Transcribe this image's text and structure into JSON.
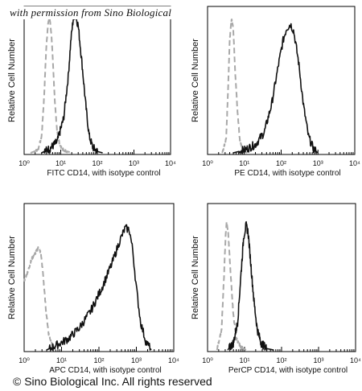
{
  "watermark": "with permission from Sino Biological",
  "copyright": "© Sino Biological Inc. All rights reserved",
  "colors": {
    "sample": "#111111",
    "isotype_control": "#a8a8a8",
    "axis": "#000000"
  },
  "chart_data": [
    {
      "type": "line",
      "xlabel": "FITC CD14,  with isotype control",
      "ylabel": "Relative Cell Number",
      "xscale": "log",
      "xlim": [
        1,
        10000
      ],
      "x_tick_labels": [
        "10⁰",
        "10¹",
        "10²",
        "10³",
        "10⁴"
      ],
      "y_tick_labels": [],
      "series": [
        {
          "role": "isotype",
          "style": "dashed-gray",
          "points": [
            [
              1.5,
              0.0
            ],
            [
              2.4,
              0.02
            ],
            [
              3.0,
              0.12
            ],
            [
              3.5,
              0.4
            ],
            [
              4.0,
              0.75
            ],
            [
              4.5,
              0.94
            ],
            [
              5.0,
              0.97
            ],
            [
              5.6,
              0.85
            ],
            [
              6.2,
              0.62
            ],
            [
              7.0,
              0.35
            ],
            [
              8.0,
              0.15
            ],
            [
              9.5,
              0.05
            ],
            [
              12,
              0.02
            ],
            [
              20,
              0.0
            ]
          ]
        },
        {
          "role": "sample",
          "style": "solid-black",
          "points": [
            [
              3.0,
              0.0
            ],
            [
              5.0,
              0.03
            ],
            [
              8.0,
              0.08
            ],
            [
              12,
              0.25
            ],
            [
              16,
              0.55
            ],
            [
              19,
              0.82
            ],
            [
              22,
              0.97
            ],
            [
              25,
              1.0
            ],
            [
              30,
              0.92
            ],
            [
              38,
              0.65
            ],
            [
              48,
              0.35
            ],
            [
              60,
              0.12
            ],
            [
              75,
              0.04
            ],
            [
              100,
              0.01
            ],
            [
              140,
              0.0
            ]
          ]
        }
      ]
    },
    {
      "type": "line",
      "xlabel": "PE CD14,  with isotype control",
      "ylabel": "Relative Cell Number",
      "xscale": "log",
      "xlim": [
        1,
        10000
      ],
      "x_tick_labels": [
        "10⁰",
        "10¹",
        "10²",
        "10³",
        "10⁴"
      ],
      "y_tick_labels": [],
      "series": [
        {
          "role": "isotype",
          "style": "dashed-gray",
          "points": [
            [
              2.5,
              0.0
            ],
            [
              3.2,
              0.1
            ],
            [
              3.6,
              0.45
            ],
            [
              4.0,
              0.82
            ],
            [
              4.5,
              0.97
            ],
            [
              5.0,
              0.9
            ],
            [
              5.6,
              0.6
            ],
            [
              6.5,
              0.3
            ],
            [
              7.5,
              0.1
            ],
            [
              9.0,
              0.02
            ],
            [
              12,
              0.0
            ]
          ]
        },
        {
          "role": "sample",
          "style": "solid-black",
          "points": [
            [
              5.0,
              0.0
            ],
            [
              10,
              0.02
            ],
            [
              20,
              0.06
            ],
            [
              35,
              0.15
            ],
            [
              55,
              0.35
            ],
            [
              80,
              0.6
            ],
            [
              110,
              0.8
            ],
            [
              140,
              0.9
            ],
            [
              180,
              0.93
            ],
            [
              220,
              0.88
            ],
            [
              300,
              0.65
            ],
            [
              400,
              0.35
            ],
            [
              550,
              0.12
            ],
            [
              750,
              0.03
            ],
            [
              1000,
              0.0
            ]
          ]
        }
      ]
    },
    {
      "type": "line",
      "xlabel": "APC CD14,  with isotype control",
      "ylabel": "Relative Cell Number",
      "xscale": "log",
      "xlim": [
        1,
        10000
      ],
      "x_tick_labels": [
        "10⁰",
        "10¹",
        "10²",
        "10³",
        "10⁴"
      ],
      "y_tick_labels": [],
      "series": [
        {
          "role": "isotype",
          "style": "dashed-gray",
          "points": [
            [
              1.0,
              0.5
            ],
            [
              1.3,
              0.58
            ],
            [
              1.6,
              0.66
            ],
            [
              2.0,
              0.7
            ],
            [
              2.4,
              0.74
            ],
            [
              2.8,
              0.7
            ],
            [
              3.2,
              0.55
            ],
            [
              3.8,
              0.3
            ],
            [
              4.5,
              0.12
            ],
            [
              5.5,
              0.04
            ],
            [
              7.0,
              0.0
            ]
          ]
        },
        {
          "role": "sample",
          "style": "solid-black",
          "points": [
            [
              4.0,
              0.0
            ],
            [
              8.0,
              0.04
            ],
            [
              15,
              0.08
            ],
            [
              30,
              0.16
            ],
            [
              60,
              0.28
            ],
            [
              120,
              0.45
            ],
            [
              220,
              0.62
            ],
            [
              350,
              0.78
            ],
            [
              500,
              0.88
            ],
            [
              650,
              0.87
            ],
            [
              800,
              0.72
            ],
            [
              1000,
              0.45
            ],
            [
              1300,
              0.2
            ],
            [
              1800,
              0.06
            ],
            [
              2500,
              0.0
            ]
          ]
        }
      ]
    },
    {
      "type": "line",
      "xlabel": "PerCP CD14, with isotype control",
      "ylabel": "Relative Cell Number",
      "xscale": "log",
      "xlim": [
        1,
        10000
      ],
      "x_tick_labels": [
        "10⁰",
        "10¹",
        "10²",
        "10³",
        "10⁴"
      ],
      "y_tick_labels": [],
      "series": [
        {
          "role": "isotype",
          "style": "dashed-gray",
          "points": [
            [
              1.8,
              0.0
            ],
            [
              2.4,
              0.15
            ],
            [
              2.8,
              0.55
            ],
            [
              3.1,
              0.85
            ],
            [
              3.3,
              0.93
            ],
            [
              3.6,
              0.85
            ],
            [
              4.2,
              0.55
            ],
            [
              5.0,
              0.25
            ],
            [
              6.0,
              0.08
            ],
            [
              8.0,
              0.02
            ],
            [
              11,
              0.0
            ]
          ]
        },
        {
          "role": "sample",
          "style": "solid-black",
          "points": [
            [
              3.5,
              0.0
            ],
            [
              5.0,
              0.05
            ],
            [
              6.5,
              0.2
            ],
            [
              8.0,
              0.55
            ],
            [
              9.5,
              0.82
            ],
            [
              11,
              0.9
            ],
            [
              12.5,
              0.85
            ],
            [
              15,
              0.6
            ],
            [
              18,
              0.35
            ],
            [
              22,
              0.15
            ],
            [
              28,
              0.05
            ],
            [
              40,
              0.01
            ],
            [
              60,
              0.0
            ]
          ]
        }
      ]
    }
  ]
}
